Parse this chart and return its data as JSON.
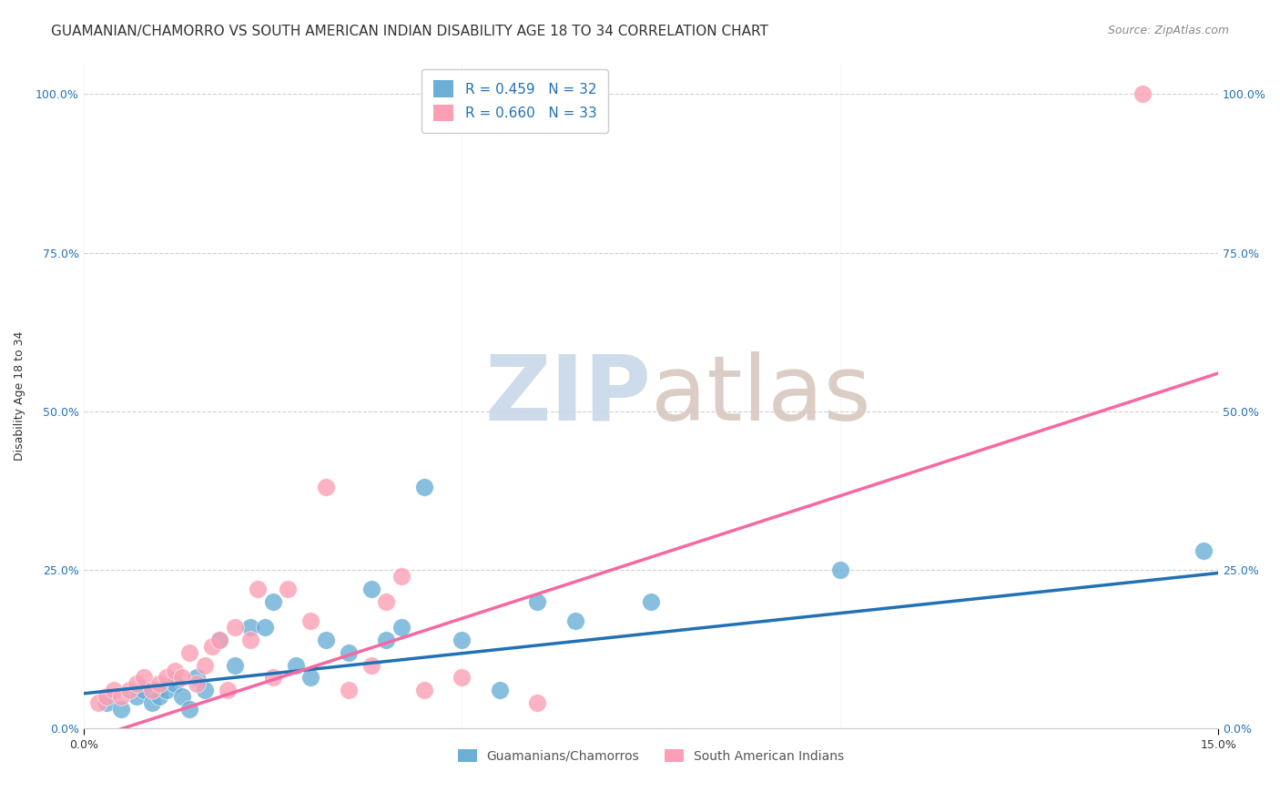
{
  "title": "GUAMANIAN/CHAMORRO VS SOUTH AMERICAN INDIAN DISABILITY AGE 18 TO 34 CORRELATION CHART",
  "source": "Source: ZipAtlas.com",
  "xlabel_ticks": [
    "0.0%",
    "15.0%"
  ],
  "ylabel_label": "Disability Age 18 to 34",
  "ylabel_ticks": [
    "0.0%",
    "25.0%",
    "50.0%",
    "75.0%",
    "100.0%"
  ],
  "xlim": [
    0.0,
    0.15
  ],
  "ylim": [
    0.0,
    1.05
  ],
  "ytick_vals": [
    0.0,
    0.25,
    0.5,
    0.75,
    1.0
  ],
  "xtick_vals": [
    0.0,
    0.15
  ],
  "legend_r1": "R = 0.459",
  "legend_n1": "N = 32",
  "legend_r2": "R = 0.660",
  "legend_n2": "N = 33",
  "blue_color": "#6baed6",
  "pink_color": "#fa9fb5",
  "blue_line_color": "#2171b5",
  "pink_line_color": "#f768a1",
  "watermark_zip_color": "#c8d8e8",
  "watermark_atlas_color": "#d8c8c0",
  "blue_scatter_x": [
    0.003,
    0.005,
    0.007,
    0.008,
    0.009,
    0.01,
    0.011,
    0.012,
    0.013,
    0.014,
    0.015,
    0.016,
    0.018,
    0.02,
    0.022,
    0.024,
    0.025,
    0.028,
    0.03,
    0.032,
    0.035,
    0.038,
    0.04,
    0.042,
    0.045,
    0.05,
    0.055,
    0.06,
    0.065,
    0.075,
    0.1,
    0.148
  ],
  "blue_scatter_y": [
    0.04,
    0.03,
    0.05,
    0.06,
    0.04,
    0.05,
    0.06,
    0.07,
    0.05,
    0.03,
    0.08,
    0.06,
    0.14,
    0.1,
    0.16,
    0.16,
    0.2,
    0.1,
    0.08,
    0.14,
    0.12,
    0.22,
    0.14,
    0.16,
    0.38,
    0.14,
    0.06,
    0.2,
    0.17,
    0.2,
    0.25,
    0.28
  ],
  "pink_scatter_x": [
    0.002,
    0.003,
    0.004,
    0.005,
    0.006,
    0.007,
    0.008,
    0.009,
    0.01,
    0.011,
    0.012,
    0.013,
    0.014,
    0.015,
    0.016,
    0.017,
    0.018,
    0.019,
    0.02,
    0.022,
    0.023,
    0.025,
    0.027,
    0.03,
    0.032,
    0.035,
    0.038,
    0.04,
    0.042,
    0.045,
    0.05,
    0.06,
    0.14
  ],
  "pink_scatter_y": [
    0.04,
    0.05,
    0.06,
    0.05,
    0.06,
    0.07,
    0.08,
    0.06,
    0.07,
    0.08,
    0.09,
    0.08,
    0.12,
    0.07,
    0.1,
    0.13,
    0.14,
    0.06,
    0.16,
    0.14,
    0.22,
    0.08,
    0.22,
    0.17,
    0.38,
    0.06,
    0.1,
    0.2,
    0.24,
    0.06,
    0.08,
    0.04,
    1.0
  ],
  "blue_line_x": [
    0.0,
    0.15
  ],
  "blue_line_y": [
    0.055,
    0.245
  ],
  "pink_line_x": [
    0.0,
    0.15
  ],
  "pink_line_y": [
    -0.02,
    0.56
  ],
  "bg_color": "#ffffff",
  "grid_color": "#d0d0d0",
  "title_fontsize": 11,
  "axis_label_fontsize": 9,
  "tick_fontsize": 9,
  "source_fontsize": 9,
  "bottom_legend_labels": [
    "Guamanians/Chamorros",
    "South American Indians"
  ]
}
